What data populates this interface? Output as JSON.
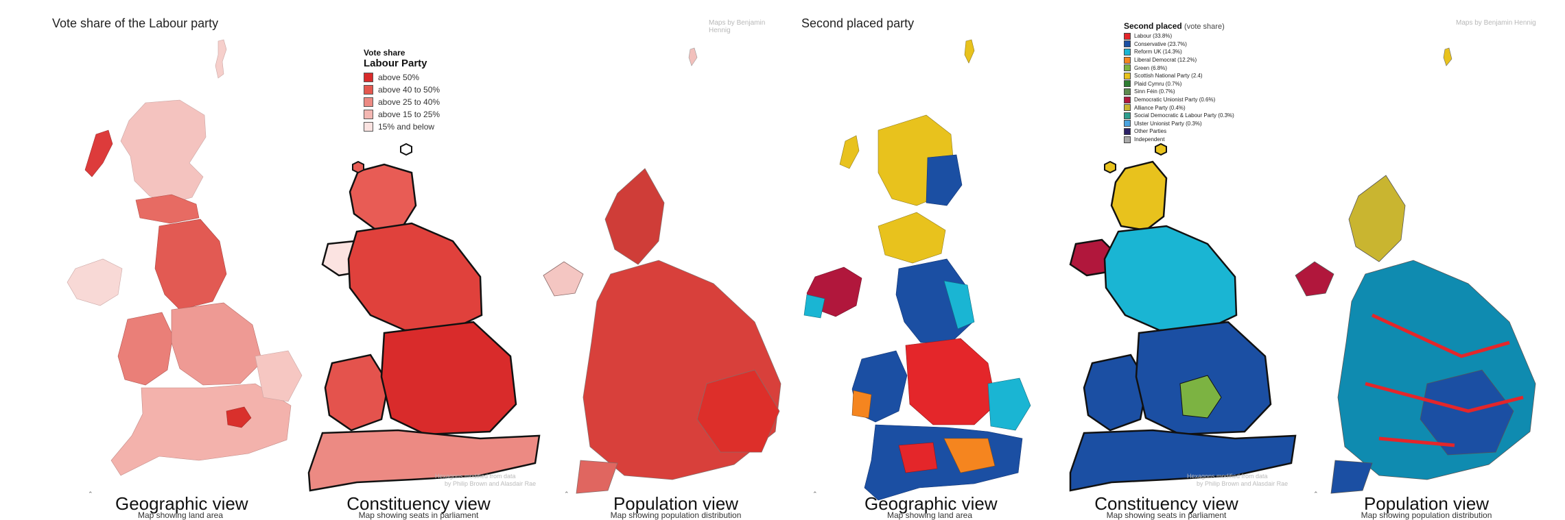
{
  "left": {
    "title": "Vote share of the Labour party",
    "credit": "Maps by Benjamin Hennig",
    "legend": {
      "heading1": "Vote share",
      "heading2": "Labour Party",
      "items": [
        {
          "label": "above 50%",
          "color": "#d92b2b"
        },
        {
          "label": "above 40 to 50%",
          "color": "#e4584f"
        },
        {
          "label": "above 25 to 40%",
          "color": "#ec8a83"
        },
        {
          "label": "above 15 to 25%",
          "color": "#f3b7b2"
        },
        {
          "label": "15% and below",
          "color": "#fbe3e1"
        }
      ]
    },
    "hex_note_1": "Hexagons modified from data",
    "hex_note_2": "by Philip Brown and Alasdair Rae",
    "views": [
      {
        "title": "Geographic view",
        "subtitle": "Map showing land area"
      },
      {
        "title": "Constituency view",
        "subtitle": "Map showing seats in parliament"
      },
      {
        "title": "Population view",
        "subtitle": "Map showing population distribution"
      }
    ]
  },
  "right": {
    "title": "Second placed party",
    "credit": "Maps by Benjamin Hennig",
    "legend": {
      "heading": "Second placed",
      "heading_sub": "(vote share)",
      "items": [
        {
          "label": "Labour (33.8%)",
          "color": "#e4262a"
        },
        {
          "label": "Conservative (23.7%)",
          "color": "#1b4fa3"
        },
        {
          "label": "Reform UK (14.3%)",
          "color": "#1ab5d3"
        },
        {
          "label": "Liberal Democrat (12.2%)",
          "color": "#f5851f"
        },
        {
          "label": "Green (6.8%)",
          "color": "#7cb342"
        },
        {
          "label": "Scottish National Party (2.4)",
          "color": "#e8c21d"
        },
        {
          "label": "Plaid Cymru (0.7%)",
          "color": "#2e7d32"
        },
        {
          "label": "Sinn Féin (0.7%)",
          "color": "#5d8a4e"
        },
        {
          "label": "Democratic Unionist Party (0.6%)",
          "color": "#b1173c"
        },
        {
          "label": "Alliance Party (0.4%)",
          "color": "#c9b530"
        },
        {
          "label": "Social Democratic & Labour Party (0.3%)",
          "color": "#2e9e8e"
        },
        {
          "label": "Ulster Unionist Party (0.3%)",
          "color": "#4aa3df"
        },
        {
          "label": "Other Parties",
          "color": "#2b2166"
        },
        {
          "label": "Independent",
          "color": "#aaaaaa"
        }
      ]
    },
    "hex_note_1": "Hexagons modified from data",
    "hex_note_2": "by Philip Brown and Alasdair Rae",
    "views": [
      {
        "title": "Geographic view",
        "subtitle": "Map showing land area"
      },
      {
        "title": "Constituency view",
        "subtitle": "Map showing seats in parliament"
      },
      {
        "title": "Population view",
        "subtitle": "Map showing population distribution"
      }
    ]
  }
}
